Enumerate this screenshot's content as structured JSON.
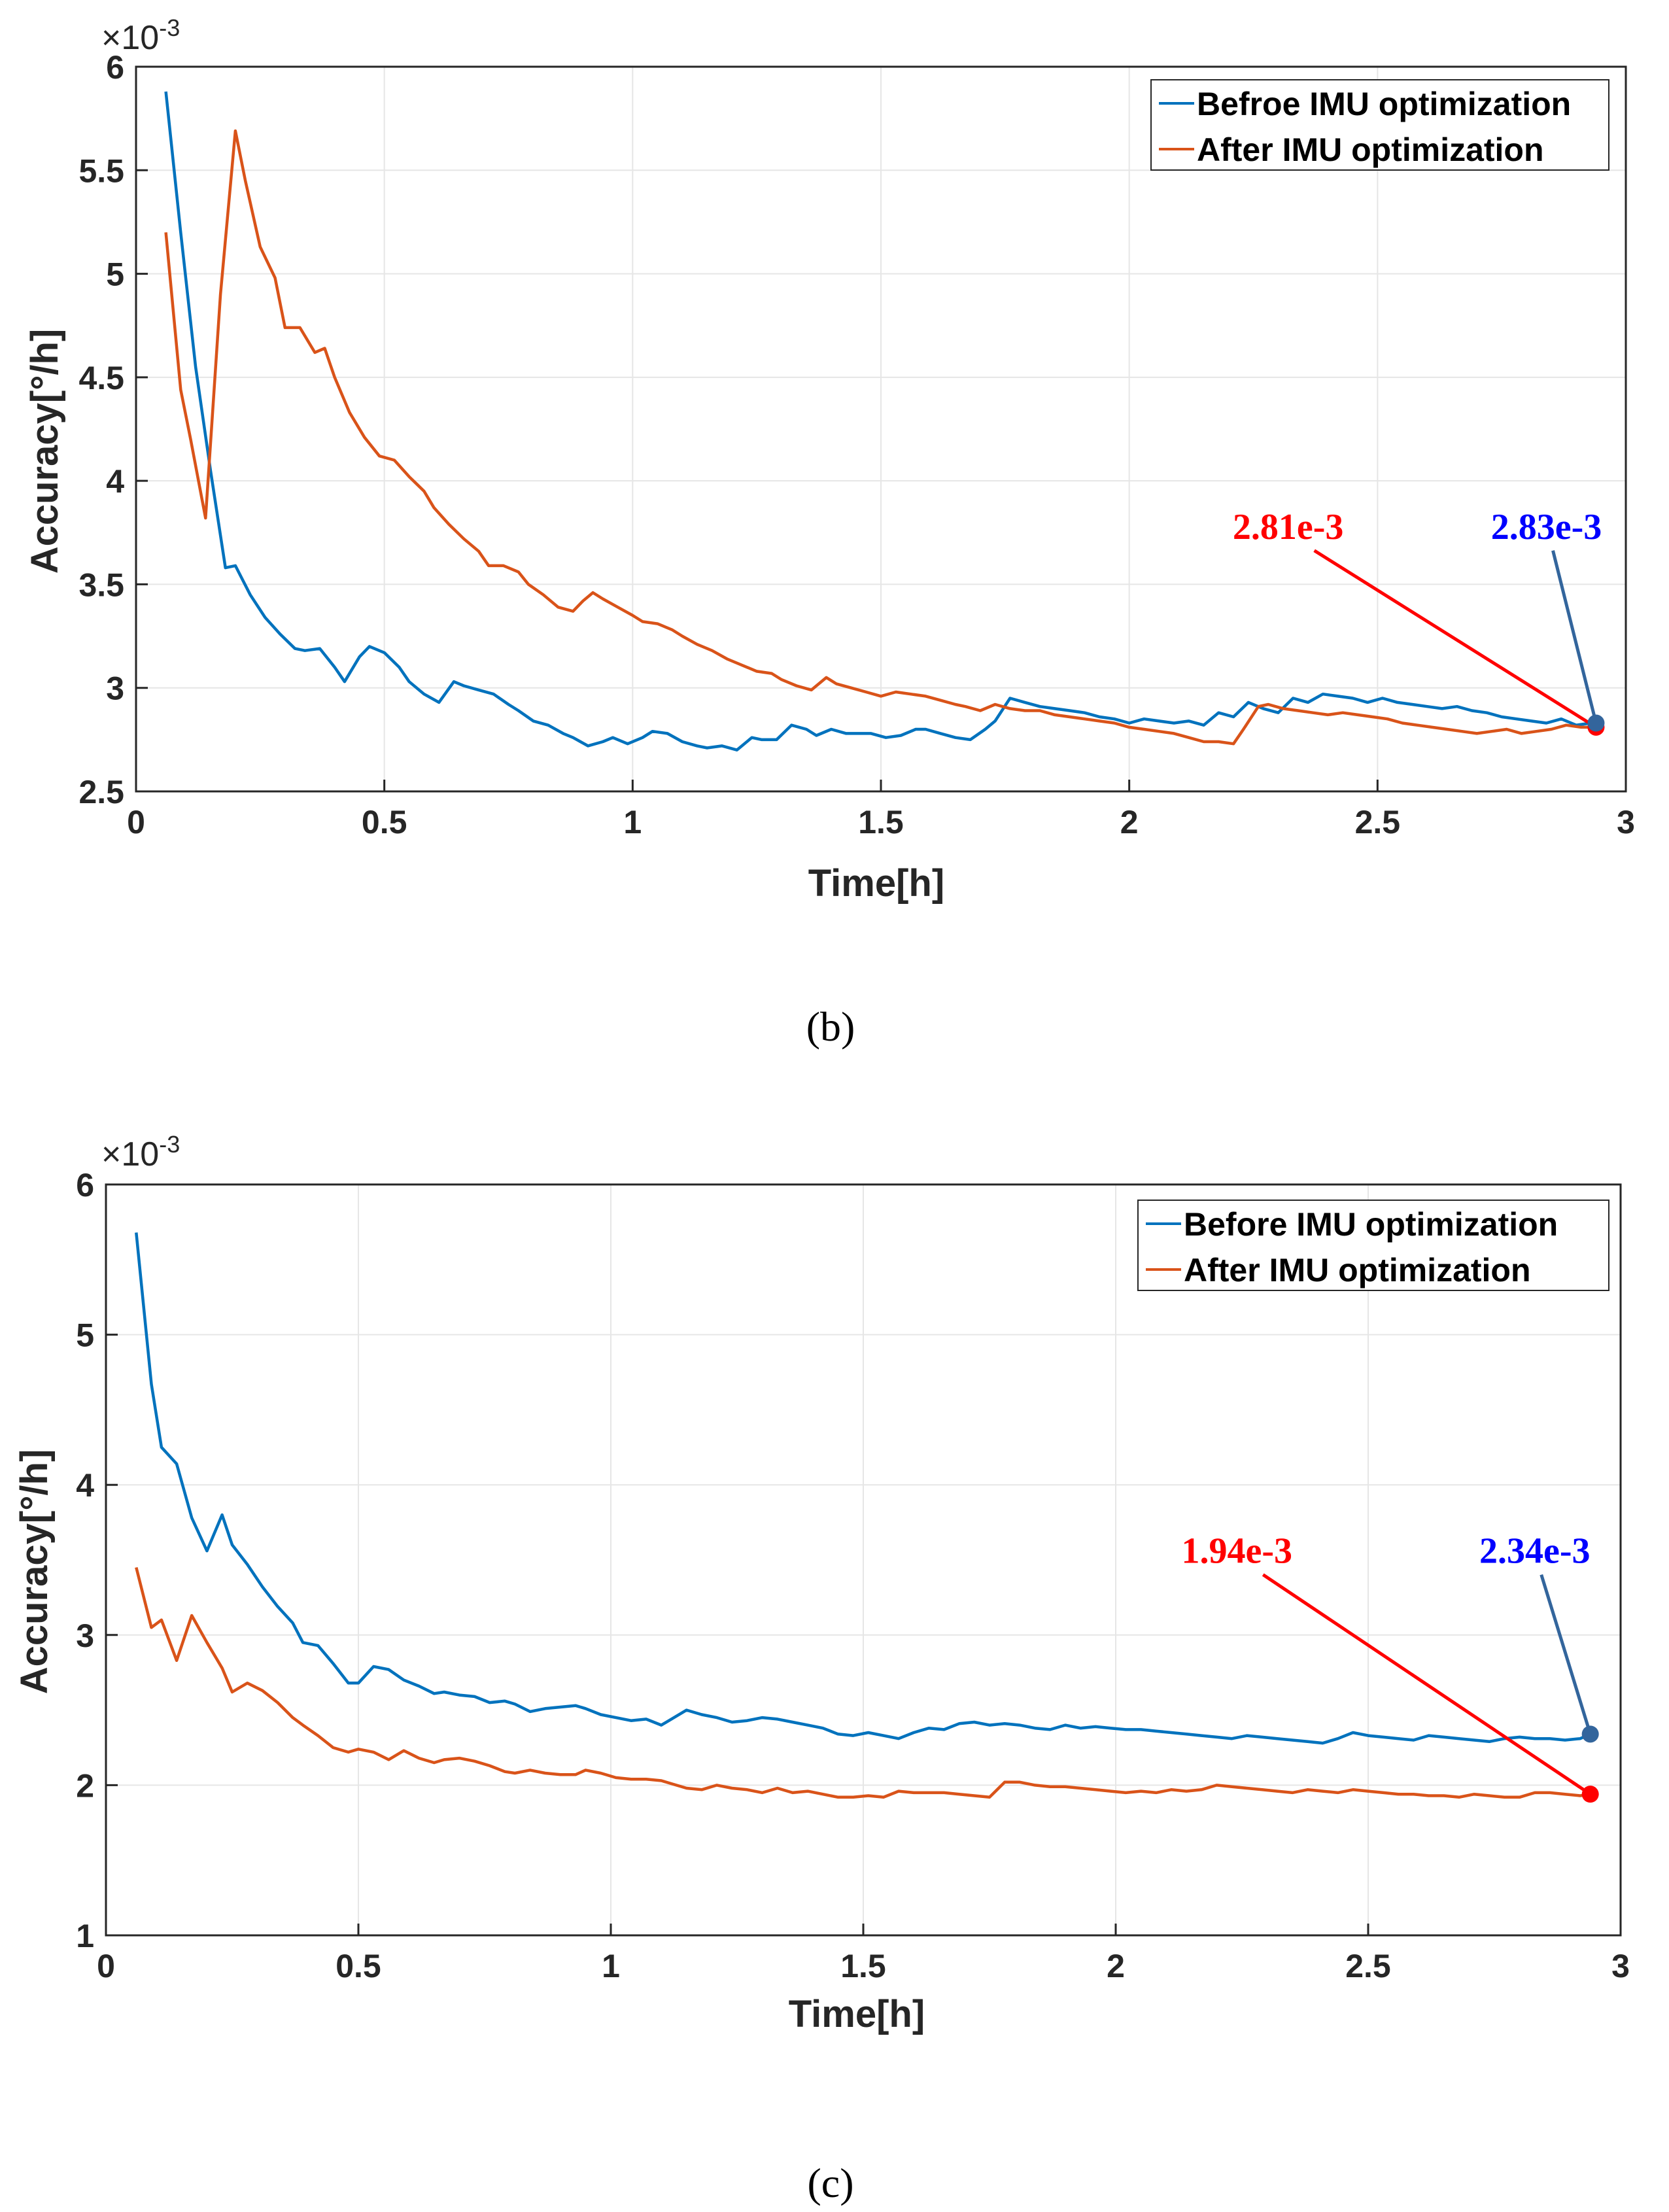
{
  "colors": {
    "before": "#0072BD",
    "after": "#D95319",
    "red_annotation": "#ff0000",
    "blue_annotation": "#0000ff",
    "blue_arrow": "#33659c"
  },
  "chart_data": [
    {
      "type": "line",
      "caption": "(b)",
      "xlabel": "Time[h]",
      "ylabel": "Accuracy[°/h]",
      "multiplier": "×10",
      "multiplier_exp": "-3",
      "xlim": [
        0,
        3
      ],
      "ylim": [
        2.5,
        6
      ],
      "xticks": [
        "0",
        "0.5",
        "1",
        "1.5",
        "2",
        "2.5",
        "3"
      ],
      "xtick_values": [
        0,
        0.5,
        1,
        1.5,
        2,
        2.5,
        3
      ],
      "yticks": [
        "2.5",
        "3",
        "3.5",
        "4",
        "4.5",
        "5",
        "5.5",
        "6"
      ],
      "ytick_values": [
        2.5,
        3,
        3.5,
        4,
        4.5,
        5,
        5.5,
        6
      ],
      "grid": true,
      "legend_position": "top-right",
      "series": [
        {
          "name": "Befroe IMU optimization",
          "color_key": "before",
          "x": [
            0.06,
            0.09,
            0.12,
            0.15,
            0.18,
            0.2,
            0.23,
            0.26,
            0.29,
            0.32,
            0.34,
            0.37,
            0.4,
            0.42,
            0.45,
            0.47,
            0.5,
            0.53,
            0.55,
            0.58,
            0.61,
            0.64,
            0.66,
            0.69,
            0.72,
            0.75,
            0.77,
            0.8,
            0.83,
            0.86,
            0.88,
            0.91,
            0.94,
            0.96,
            0.99,
            1.02,
            1.04,
            1.07,
            1.1,
            1.13,
            1.15,
            1.18,
            1.21,
            1.24,
            1.26,
            1.29,
            1.32,
            1.35,
            1.37,
            1.4,
            1.43,
            1.46,
            1.48,
            1.51,
            1.54,
            1.57,
            1.59,
            1.62,
            1.65,
            1.68,
            1.71,
            1.73,
            1.76,
            1.79,
            1.82,
            1.85,
            1.88,
            1.91,
            1.94,
            1.97,
            2.0,
            2.03,
            2.06,
            2.09,
            2.12,
            2.15,
            2.18,
            2.21,
            2.24,
            2.27,
            2.3,
            2.33,
            2.36,
            2.39,
            2.42,
            2.45,
            2.48,
            2.51,
            2.54,
            2.57,
            2.6,
            2.63,
            2.66,
            2.69,
            2.72,
            2.75,
            2.78,
            2.81,
            2.84,
            2.87,
            2.9,
            2.93,
            2.94
          ],
          "y": [
            5.88,
            5.2,
            4.55,
            4.05,
            3.58,
            3.59,
            3.45,
            3.34,
            3.26,
            3.19,
            3.18,
            3.19,
            3.1,
            3.03,
            3.15,
            3.2,
            3.17,
            3.1,
            3.03,
            2.97,
            2.93,
            3.03,
            3.01,
            2.99,
            2.97,
            2.92,
            2.89,
            2.84,
            2.82,
            2.78,
            2.76,
            2.72,
            2.74,
            2.76,
            2.73,
            2.76,
            2.79,
            2.78,
            2.74,
            2.72,
            2.71,
            2.72,
            2.7,
            2.76,
            2.75,
            2.75,
            2.82,
            2.8,
            2.77,
            2.8,
            2.78,
            2.78,
            2.78,
            2.76,
            2.77,
            2.8,
            2.8,
            2.78,
            2.76,
            2.75,
            2.8,
            2.84,
            2.95,
            2.93,
            2.91,
            2.9,
            2.89,
            2.88,
            2.86,
            2.85,
            2.83,
            2.85,
            2.84,
            2.83,
            2.84,
            2.82,
            2.88,
            2.86,
            2.93,
            2.9,
            2.88,
            2.95,
            2.93,
            2.97,
            2.96,
            2.95,
            2.93,
            2.95,
            2.93,
            2.92,
            2.91,
            2.9,
            2.91,
            2.89,
            2.88,
            2.86,
            2.85,
            2.84,
            2.83,
            2.85,
            2.82,
            2.83,
            2.83
          ]
        },
        {
          "name": "After IMU optimization",
          "color_key": "after",
          "x": [
            0.06,
            0.09,
            0.11,
            0.14,
            0.17,
            0.2,
            0.22,
            0.25,
            0.28,
            0.3,
            0.33,
            0.36,
            0.38,
            0.4,
            0.43,
            0.46,
            0.49,
            0.52,
            0.55,
            0.58,
            0.6,
            0.63,
            0.66,
            0.69,
            0.71,
            0.74,
            0.77,
            0.79,
            0.82,
            0.85,
            0.88,
            0.9,
            0.92,
            0.94,
            0.97,
            1.0,
            1.02,
            1.05,
            1.08,
            1.1,
            1.13,
            1.16,
            1.19,
            1.22,
            1.25,
            1.28,
            1.3,
            1.33,
            1.36,
            1.39,
            1.41,
            1.44,
            1.47,
            1.5,
            1.53,
            1.56,
            1.59,
            1.62,
            1.65,
            1.67,
            1.7,
            1.73,
            1.76,
            1.79,
            1.82,
            1.85,
            1.88,
            1.91,
            1.94,
            1.97,
            2.0,
            2.03,
            2.06,
            2.09,
            2.12,
            2.15,
            2.18,
            2.21,
            2.23,
            2.26,
            2.28,
            2.31,
            2.34,
            2.37,
            2.4,
            2.43,
            2.46,
            2.49,
            2.52,
            2.55,
            2.58,
            2.61,
            2.64,
            2.67,
            2.7,
            2.73,
            2.76,
            2.79,
            2.82,
            2.85,
            2.88,
            2.91,
            2.94
          ],
          "y": [
            5.2,
            4.44,
            4.2,
            3.82,
            4.9,
            5.69,
            5.45,
            5.13,
            4.98,
            4.74,
            4.74,
            4.62,
            4.64,
            4.5,
            4.33,
            4.21,
            4.12,
            4.1,
            4.02,
            3.95,
            3.87,
            3.79,
            3.72,
            3.66,
            3.59,
            3.59,
            3.56,
            3.5,
            3.45,
            3.39,
            3.37,
            3.42,
            3.46,
            3.43,
            3.39,
            3.35,
            3.32,
            3.31,
            3.28,
            3.25,
            3.21,
            3.18,
            3.14,
            3.11,
            3.08,
            3.07,
            3.04,
            3.01,
            2.99,
            3.05,
            3.02,
            3.0,
            2.98,
            2.96,
            2.98,
            2.97,
            2.96,
            2.94,
            2.92,
            2.91,
            2.89,
            2.92,
            2.9,
            2.89,
            2.89,
            2.87,
            2.86,
            2.85,
            2.84,
            2.83,
            2.81,
            2.8,
            2.79,
            2.78,
            2.76,
            2.74,
            2.74,
            2.73,
            2.8,
            2.91,
            2.92,
            2.9,
            2.89,
            2.88,
            2.87,
            2.88,
            2.87,
            2.86,
            2.85,
            2.83,
            2.82,
            2.81,
            2.8,
            2.79,
            2.78,
            2.79,
            2.8,
            2.78,
            2.79,
            2.8,
            2.82,
            2.81,
            2.81
          ]
        }
      ],
      "annotations": [
        {
          "text": "2.81e-3",
          "color_key": "red_annotation",
          "arrow_key": "red_annotation",
          "series": 1,
          "x": 2.94,
          "y": 2.81,
          "label_x": 2.32,
          "label_y": 3.72,
          "point_color_key": "red_annotation"
        },
        {
          "text": "2.83e-3",
          "color_key": "blue_annotation",
          "arrow_key": "blue_arrow",
          "series": 0,
          "x": 2.94,
          "y": 2.83,
          "label_x": 2.84,
          "label_y": 3.72,
          "point_color_key": "blue_arrow"
        }
      ]
    },
    {
      "type": "line",
      "caption": "(c)",
      "xlabel": "Time[h]",
      "ylabel": "Accuracy[°/h]",
      "multiplier": "×10",
      "multiplier_exp": "-3",
      "xlim": [
        0,
        3
      ],
      "ylim": [
        1,
        6
      ],
      "xticks": [
        "0",
        "0.5",
        "1",
        "1.5",
        "2",
        "2.5",
        "3"
      ],
      "xtick_values": [
        0,
        0.5,
        1,
        1.5,
        2,
        2.5,
        3
      ],
      "yticks": [
        "1",
        "2",
        "3",
        "4",
        "5",
        "6"
      ],
      "ytick_values": [
        1,
        2,
        3,
        4,
        5,
        6
      ],
      "grid": true,
      "legend_position": "top-right",
      "series": [
        {
          "name": "Before IMU optimization",
          "color_key": "before",
          "x": [
            0.06,
            0.09,
            0.11,
            0.14,
            0.17,
            0.2,
            0.23,
            0.25,
            0.28,
            0.31,
            0.34,
            0.37,
            0.39,
            0.42,
            0.45,
            0.48,
            0.5,
            0.53,
            0.56,
            0.59,
            0.62,
            0.65,
            0.67,
            0.7,
            0.73,
            0.76,
            0.79,
            0.81,
            0.84,
            0.87,
            0.9,
            0.93,
            0.95,
            0.98,
            1.01,
            1.04,
            1.07,
            1.1,
            1.12,
            1.15,
            1.18,
            1.21,
            1.24,
            1.27,
            1.3,
            1.33,
            1.36,
            1.39,
            1.42,
            1.45,
            1.48,
            1.51,
            1.54,
            1.57,
            1.6,
            1.63,
            1.66,
            1.69,
            1.72,
            1.75,
            1.78,
            1.81,
            1.84,
            1.87,
            1.9,
            1.93,
            1.96,
            1.99,
            2.02,
            2.05,
            2.08,
            2.11,
            2.14,
            2.17,
            2.2,
            2.23,
            2.26,
            2.29,
            2.32,
            2.35,
            2.38,
            2.41,
            2.44,
            2.47,
            2.5,
            2.53,
            2.56,
            2.59,
            2.62,
            2.65,
            2.68,
            2.71,
            2.74,
            2.77,
            2.8,
            2.83,
            2.86,
            2.89,
            2.92,
            2.94
          ],
          "y": [
            5.68,
            4.67,
            4.25,
            4.14,
            3.78,
            3.56,
            3.8,
            3.6,
            3.47,
            3.32,
            3.19,
            3.08,
            2.95,
            2.93,
            2.81,
            2.68,
            2.68,
            2.79,
            2.77,
            2.7,
            2.66,
            2.61,
            2.62,
            2.6,
            2.59,
            2.55,
            2.56,
            2.54,
            2.49,
            2.51,
            2.52,
            2.53,
            2.51,
            2.47,
            2.45,
            2.43,
            2.44,
            2.4,
            2.44,
            2.5,
            2.47,
            2.45,
            2.42,
            2.43,
            2.45,
            2.44,
            2.42,
            2.4,
            2.38,
            2.34,
            2.33,
            2.35,
            2.33,
            2.31,
            2.35,
            2.38,
            2.37,
            2.41,
            2.42,
            2.4,
            2.41,
            2.4,
            2.38,
            2.37,
            2.4,
            2.38,
            2.39,
            2.38,
            2.37,
            2.37,
            2.36,
            2.35,
            2.34,
            2.33,
            2.32,
            2.31,
            2.33,
            2.32,
            2.31,
            2.3,
            2.29,
            2.28,
            2.31,
            2.35,
            2.33,
            2.32,
            2.31,
            2.3,
            2.33,
            2.32,
            2.31,
            2.3,
            2.29,
            2.31,
            2.32,
            2.31,
            2.31,
            2.3,
            2.31,
            2.34
          ]
        },
        {
          "name": "After IMU optimization",
          "color_key": "after",
          "x": [
            0.06,
            0.09,
            0.11,
            0.14,
            0.17,
            0.2,
            0.23,
            0.25,
            0.28,
            0.31,
            0.34,
            0.37,
            0.39,
            0.42,
            0.45,
            0.48,
            0.5,
            0.53,
            0.56,
            0.59,
            0.62,
            0.65,
            0.67,
            0.7,
            0.73,
            0.76,
            0.79,
            0.81,
            0.84,
            0.87,
            0.9,
            0.93,
            0.95,
            0.98,
            1.01,
            1.04,
            1.07,
            1.1,
            1.12,
            1.15,
            1.18,
            1.21,
            1.24,
            1.27,
            1.3,
            1.33,
            1.36,
            1.39,
            1.42,
            1.45,
            1.48,
            1.51,
            1.54,
            1.57,
            1.6,
            1.63,
            1.66,
            1.69,
            1.72,
            1.75,
            1.78,
            1.81,
            1.84,
            1.87,
            1.9,
            1.93,
            1.96,
            1.99,
            2.02,
            2.05,
            2.08,
            2.11,
            2.14,
            2.17,
            2.2,
            2.23,
            2.26,
            2.29,
            2.32,
            2.35,
            2.38,
            2.41,
            2.44,
            2.47,
            2.5,
            2.53,
            2.56,
            2.59,
            2.62,
            2.65,
            2.68,
            2.71,
            2.74,
            2.77,
            2.8,
            2.83,
            2.86,
            2.89,
            2.92,
            2.94
          ],
          "y": [
            3.45,
            3.05,
            3.1,
            2.83,
            3.13,
            2.95,
            2.78,
            2.62,
            2.68,
            2.63,
            2.55,
            2.45,
            2.4,
            2.33,
            2.25,
            2.22,
            2.24,
            2.22,
            2.17,
            2.23,
            2.18,
            2.15,
            2.17,
            2.18,
            2.16,
            2.13,
            2.09,
            2.08,
            2.1,
            2.08,
            2.07,
            2.07,
            2.1,
            2.08,
            2.05,
            2.04,
            2.04,
            2.03,
            2.01,
            1.98,
            1.97,
            2.0,
            1.98,
            1.97,
            1.95,
            1.98,
            1.95,
            1.96,
            1.94,
            1.92,
            1.92,
            1.93,
            1.92,
            1.96,
            1.95,
            1.95,
            1.95,
            1.94,
            1.93,
            1.92,
            2.02,
            2.02,
            2.0,
            1.99,
            1.99,
            1.98,
            1.97,
            1.96,
            1.95,
            1.96,
            1.95,
            1.97,
            1.96,
            1.97,
            2.0,
            1.99,
            1.98,
            1.97,
            1.96,
            1.95,
            1.97,
            1.96,
            1.95,
            1.97,
            1.96,
            1.95,
            1.94,
            1.94,
            1.93,
            1.93,
            1.92,
            1.94,
            1.93,
            1.92,
            1.92,
            1.95,
            1.95,
            1.94,
            1.93,
            1.94
          ]
        }
      ],
      "annotations": [
        {
          "text": "1.94e-3",
          "color_key": "red_annotation",
          "arrow_key": "red_annotation",
          "series": 1,
          "x": 2.94,
          "y": 1.94,
          "label_x": 2.24,
          "label_y": 3.48,
          "point_color_key": "red_annotation"
        },
        {
          "text": "2.34e-3",
          "color_key": "blue_annotation",
          "arrow_key": "blue_arrow",
          "series": 0,
          "x": 2.94,
          "y": 2.34,
          "label_x": 2.83,
          "label_y": 3.48,
          "point_color_key": "blue_arrow"
        }
      ]
    }
  ]
}
